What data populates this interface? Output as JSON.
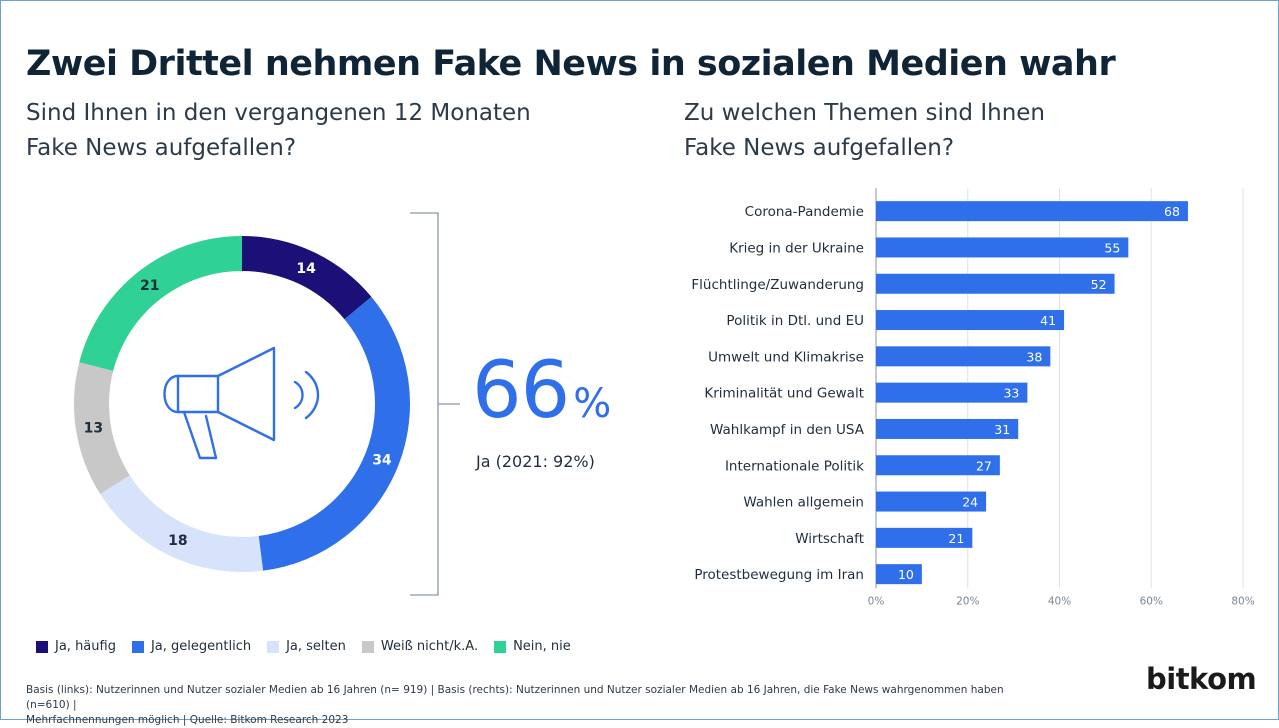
{
  "title": "Zwei Drittel nehmen Fake News in sozialen Medien wahr",
  "left": {
    "subtitle_line1": "Sind Ihnen in den vergangenen 12 Monaten",
    "subtitle_line2": "Fake News aufgefallen?",
    "big_value": "66",
    "big_value_unit": "%",
    "big_label": "Ja (2021: 92%)"
  },
  "right": {
    "subtitle_line1": "Zu welchen Themen sind Ihnen",
    "subtitle_line2": "Fake News aufgefallen?"
  },
  "legend": [
    {
      "label": "Ja, häufig",
      "color": "#1a1078"
    },
    {
      "label": "Ja, gelegentlich",
      "color": "#2f6fea"
    },
    {
      "label": "Ja, selten",
      "color": "#d6e3fb"
    },
    {
      "label": "Weiß nicht/k.A.",
      "color": "#c8c8c8"
    },
    {
      "label": "Nein, nie",
      "color": "#2fd195"
    }
  ],
  "footnote_line1": "Basis (links): Nutzerinnen und Nutzer sozialer Medien ab 16 Jahren (n= 919) | Basis (rechts): Nutzerinnen und Nutzer sozialer Medien ab 16 Jahren, die Fake News wahrgenommen haben (n=610) |",
  "footnote_line2": "Mehrfachnennungen möglich | Quelle: Bitkom Research 2023",
  "logo": "bitkom",
  "icons": {
    "donut_center": "megaphone-icon"
  },
  "chart_data": [
    {
      "type": "pie",
      "donut": true,
      "categories": [
        "Ja, häufig",
        "Ja, gelegentlich",
        "Ja, selten",
        "Weiß nicht/k.A.",
        "Nein, nie"
      ],
      "values": [
        14,
        34,
        18,
        13,
        21
      ],
      "colors": [
        "#1a1078",
        "#2f6fea",
        "#d6e3fb",
        "#c8c8c8",
        "#2fd195"
      ],
      "label_colors": [
        "#ffffff",
        "#ffffff",
        "#1f2d3d",
        "#1f2d3d",
        "#1f2d3d"
      ],
      "legend_position": "bottom-left"
    },
    {
      "type": "bar",
      "orientation": "horizontal",
      "categories": [
        "Corona-Pandemie",
        "Krieg in der Ukraine",
        "Flüchtlinge/Zuwanderung",
        "Politik in Dtl. und EU",
        "Umwelt und Klimakrise",
        "Kriminalität und Gewalt",
        "Wahlkampf in den USA",
        "Internationale Politik",
        "Wahlen allgemein",
        "Wirtschaft",
        "Protestbewegung im Iran"
      ],
      "values": [
        68,
        55,
        52,
        41,
        38,
        33,
        31,
        27,
        24,
        21,
        10
      ],
      "xlim": [
        0,
        80
      ],
      "xticks": [
        "0%",
        "20%",
        "40%",
        "60%",
        "80%"
      ],
      "grid": true,
      "color": "#2f6fea"
    }
  ]
}
